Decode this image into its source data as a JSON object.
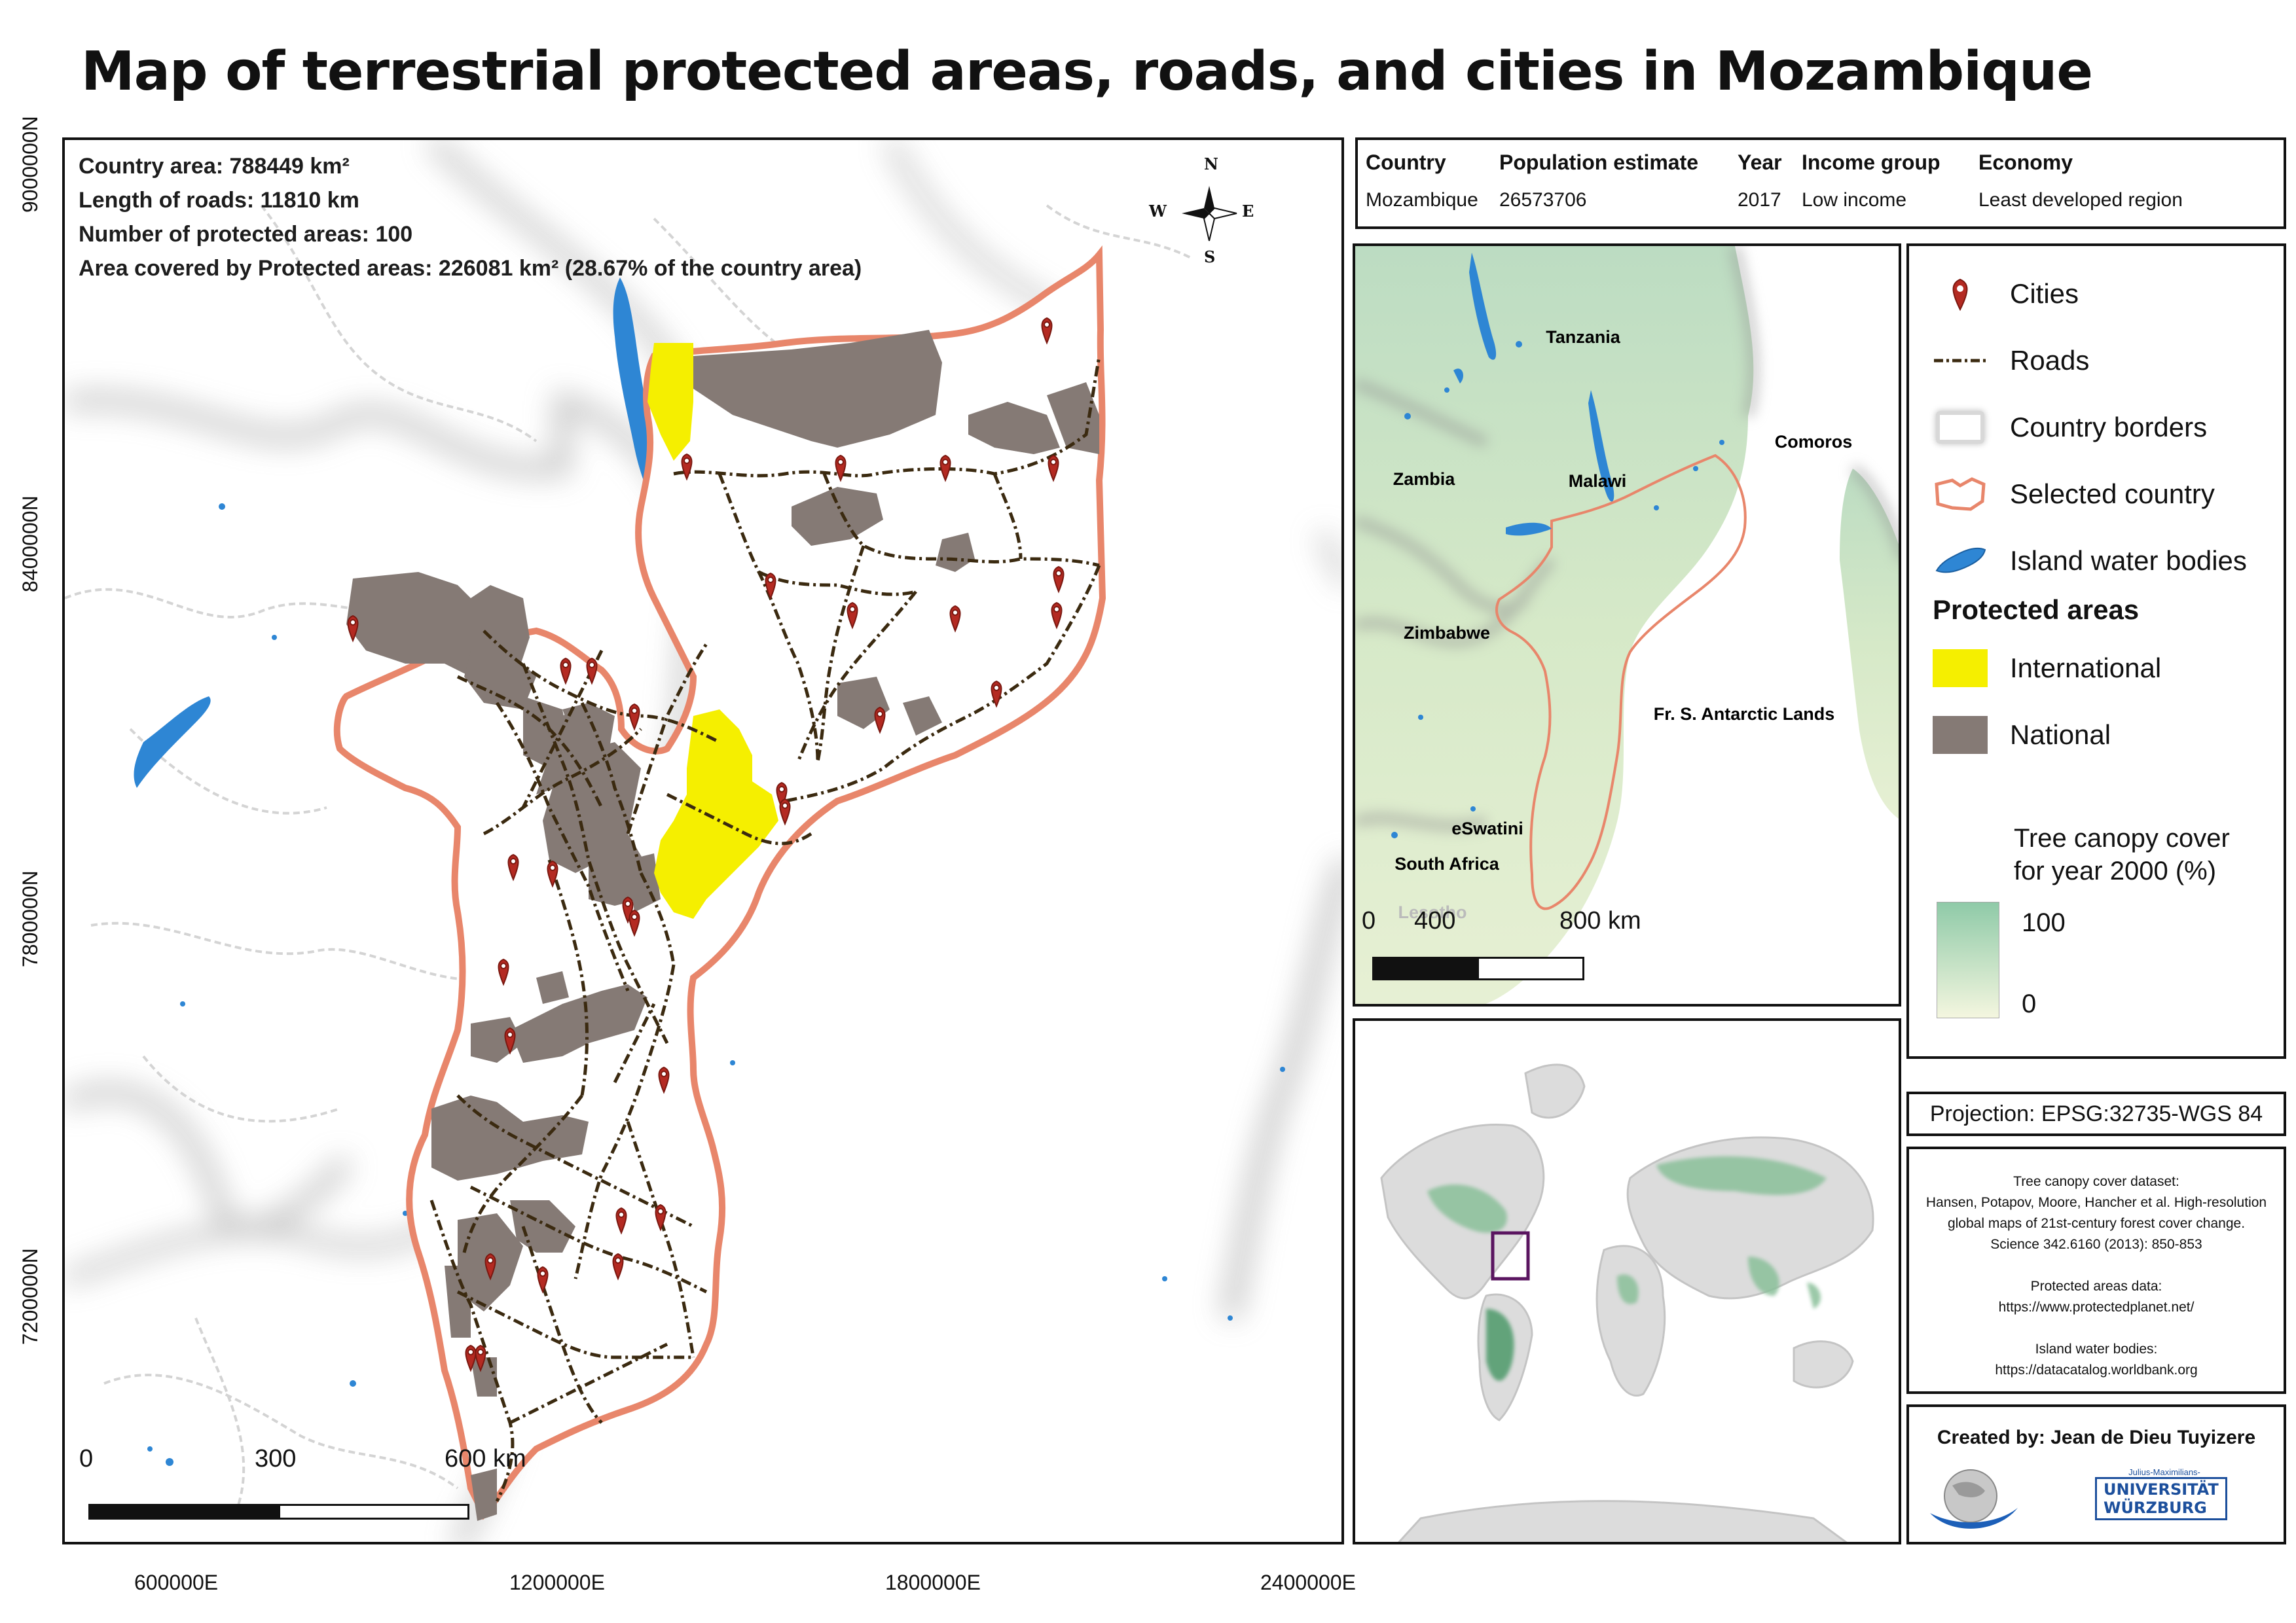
{
  "title": "Map of terrestrial protected areas, roads, and cities in Mozambique",
  "stats": {
    "country_area": "Country area: 788449 km²",
    "roads_length": "Length of roads: 11810 km",
    "protected_count": "Number of protected areas: 100",
    "protected_area": "Area covered by Protected areas: 226081 km² (28.67% of the country area)"
  },
  "north_arrow": {
    "n": "N",
    "s": "S",
    "e": "E",
    "w": "W"
  },
  "axes": {
    "y_ticks": [
      "9000000N",
      "8400000N",
      "7800000N",
      "7200000N"
    ],
    "x_ticks": [
      "600000E",
      "1200000E",
      "1800000E",
      "2400000E"
    ]
  },
  "main_scale": {
    "labels": [
      "0",
      "300",
      "600 km"
    ]
  },
  "info_table": {
    "headers": [
      "Country",
      "Population estimate",
      "Year",
      "Income group",
      "Economy"
    ],
    "row": [
      "Mozambique",
      "26573706",
      "2017",
      "Low income",
      "Least developed region"
    ]
  },
  "inset_map": {
    "labels": [
      "Tanzania",
      "Comoros",
      "Zambia",
      "Malawi",
      "Zimbabwe",
      "Fr. S. Antarctic Lands",
      "eSwatini",
      "South Africa",
      "Lesotho"
    ],
    "scale": [
      "0",
      "400",
      "800 km"
    ]
  },
  "legend": {
    "items": [
      {
        "label": "Cities",
        "icon": "city-pin-icon"
      },
      {
        "label": "Roads",
        "icon": "road-line-icon"
      },
      {
        "label": "Country borders",
        "icon": "country-border-icon"
      },
      {
        "label": "Selected country",
        "icon": "selected-country-icon"
      },
      {
        "label": "Island water bodies",
        "icon": "water-body-icon"
      }
    ],
    "protected_heading": "Protected areas",
    "protected_items": [
      {
        "label": "International",
        "color": "#f5ef00"
      },
      {
        "label": "National",
        "color": "#857a75"
      }
    ],
    "canopy_title_1": "Tree canopy cover",
    "canopy_title_2": "for year 2000 (%)",
    "canopy_max": "100",
    "canopy_min": "0"
  },
  "projection": "Projection: EPSG:32735-WGS 84",
  "sources": {
    "lines": [
      "Tree canopy cover dataset:",
      "Hansen, Potapov, Moore, Hancher et al. High-resolution",
      "global maps of 21st-century forest cover change.",
      "Science 342.6160 (2013): 850-853",
      "",
      "Protected areas data:",
      "https://www.protectedplanet.net/",
      "",
      "Island water bodies:",
      "https://datacatalog.worldbank.org"
    ]
  },
  "credits": {
    "created_by": "Created by: Jean de Dieu Tuyizere",
    "uni_small": "Julius-Maximilians-",
    "uni_line1": "UNIVERSITÄT",
    "uni_line2": "WÜRZBURG"
  },
  "colors": {
    "international": "#f5ef00",
    "national": "#857a75",
    "selected_border": "#e8866b",
    "water": "#2e86d4",
    "road": "#3b2a10",
    "city": "#b42a22",
    "locator_box": "#5a1560"
  }
}
